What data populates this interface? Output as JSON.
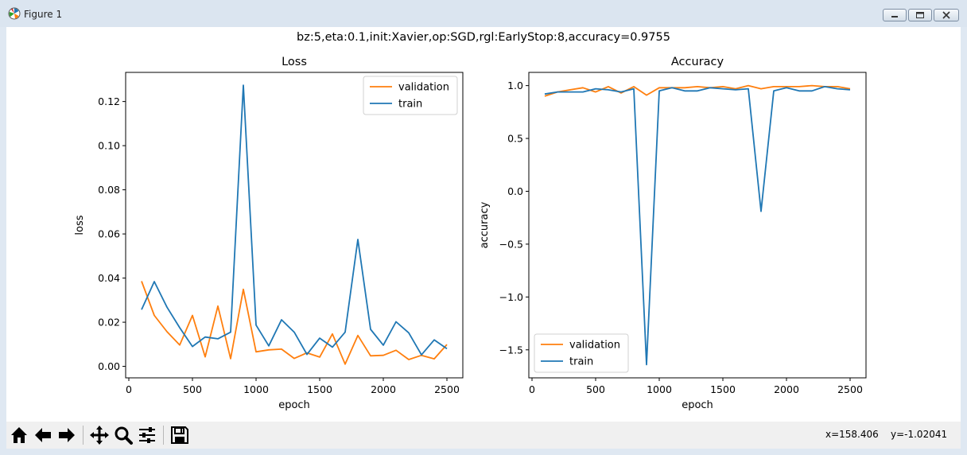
{
  "window": {
    "title": "Figure 1",
    "icon": "matplotlib-logo-icon"
  },
  "figure_title": "bz:5,eta:0.1,init:Xavier,op:SGD,rgl:EarlyStop:8,accuracy=0.9755",
  "toolbar": {
    "buttons": [
      "home-icon",
      "back-icon",
      "forward-icon",
      "pan-icon",
      "zoom-icon",
      "configure-icon",
      "save-icon"
    ],
    "coords": {
      "x": "x=158.406",
      "y": "y=-1.02041"
    }
  },
  "colors": {
    "train": "#1f77b4",
    "validation": "#ff7f0e"
  },
  "chart_data": [
    {
      "type": "line",
      "title": "Loss",
      "xlabel": "epoch",
      "ylabel": "loss",
      "xlim": [
        -25,
        2625
      ],
      "ylim": [
        -0.0052,
        0.1332
      ],
      "xticks": [
        0,
        500,
        1000,
        1500,
        2000,
        2500
      ],
      "xtick_labels": [
        "0",
        "500",
        "1000",
        "1500",
        "2000",
        "2500"
      ],
      "yticks": [
        0.0,
        0.02,
        0.04,
        0.06,
        0.08,
        0.1,
        0.12
      ],
      "ytick_labels": [
        "0.00",
        "0.02",
        "0.04",
        "0.06",
        "0.08",
        "0.10",
        "0.12"
      ],
      "legend": "top-right",
      "grid": false,
      "x": [
        100,
        200,
        300,
        400,
        500,
        600,
        700,
        800,
        900,
        1000,
        1100,
        1200,
        1300,
        1400,
        1500,
        1600,
        1700,
        1800,
        1900,
        2000,
        2100,
        2200,
        2300,
        2400,
        2500
      ],
      "series": [
        {
          "name": "validation",
          "color": "#ff7f0e",
          "values": [
            0.0386,
            0.0231,
            0.0157,
            0.0097,
            0.0231,
            0.0043,
            0.0273,
            0.0035,
            0.0349,
            0.0066,
            0.0075,
            0.0078,
            0.0036,
            0.0061,
            0.0042,
            0.0147,
            0.001,
            0.014,
            0.0048,
            0.005,
            0.0073,
            0.0031,
            0.005,
            0.0034,
            0.0099
          ]
        },
        {
          "name": "train",
          "color": "#1f77b4",
          "values": [
            0.0257,
            0.0384,
            0.0268,
            0.0175,
            0.009,
            0.0133,
            0.0125,
            0.0155,
            0.1274,
            0.0187,
            0.0093,
            0.0211,
            0.0155,
            0.0054,
            0.0128,
            0.0087,
            0.0155,
            0.0575,
            0.0168,
            0.0096,
            0.0202,
            0.0152,
            0.0052,
            0.012,
            0.008
          ]
        }
      ]
    },
    {
      "type": "line",
      "title": "Accuracy",
      "xlabel": "epoch",
      "ylabel": "accuracy",
      "xlim": [
        -25,
        2625
      ],
      "ylim": [
        -1.765,
        1.125
      ],
      "xticks": [
        0,
        500,
        1000,
        1500,
        2000,
        2500
      ],
      "xtick_labels": [
        "0",
        "500",
        "1000",
        "1500",
        "2000",
        "2500"
      ],
      "yticks": [
        1.0,
        0.5,
        0.0,
        -0.5,
        -1.0,
        -1.5
      ],
      "ytick_labels": [
        "1.0",
        "0.5",
        "0.0",
        "−0.5",
        "−1.0",
        "−1.5"
      ],
      "legend": "bottom-left",
      "grid": false,
      "x": [
        100,
        200,
        300,
        400,
        500,
        600,
        700,
        800,
        900,
        1000,
        1100,
        1200,
        1300,
        1400,
        1500,
        1600,
        1700,
        1800,
        1900,
        2000,
        2100,
        2200,
        2300,
        2400,
        2500
      ],
      "series": [
        {
          "name": "validation",
          "color": "#ff7f0e",
          "values": [
            0.9,
            0.94,
            0.96,
            0.98,
            0.94,
            0.99,
            0.93,
            0.99,
            0.91,
            0.98,
            0.98,
            0.98,
            0.99,
            0.98,
            0.99,
            0.97,
            1.0,
            0.97,
            0.99,
            0.99,
            0.99,
            1.0,
            0.99,
            0.99,
            0.97
          ]
        },
        {
          "name": "train",
          "color": "#1f77b4",
          "values": [
            0.92,
            0.94,
            0.94,
            0.94,
            0.97,
            0.96,
            0.94,
            0.97,
            -1.64,
            0.95,
            0.98,
            0.95,
            0.95,
            0.98,
            0.97,
            0.96,
            0.97,
            -0.19,
            0.95,
            0.98,
            0.95,
            0.95,
            0.99,
            0.97,
            0.96
          ]
        }
      ]
    }
  ]
}
